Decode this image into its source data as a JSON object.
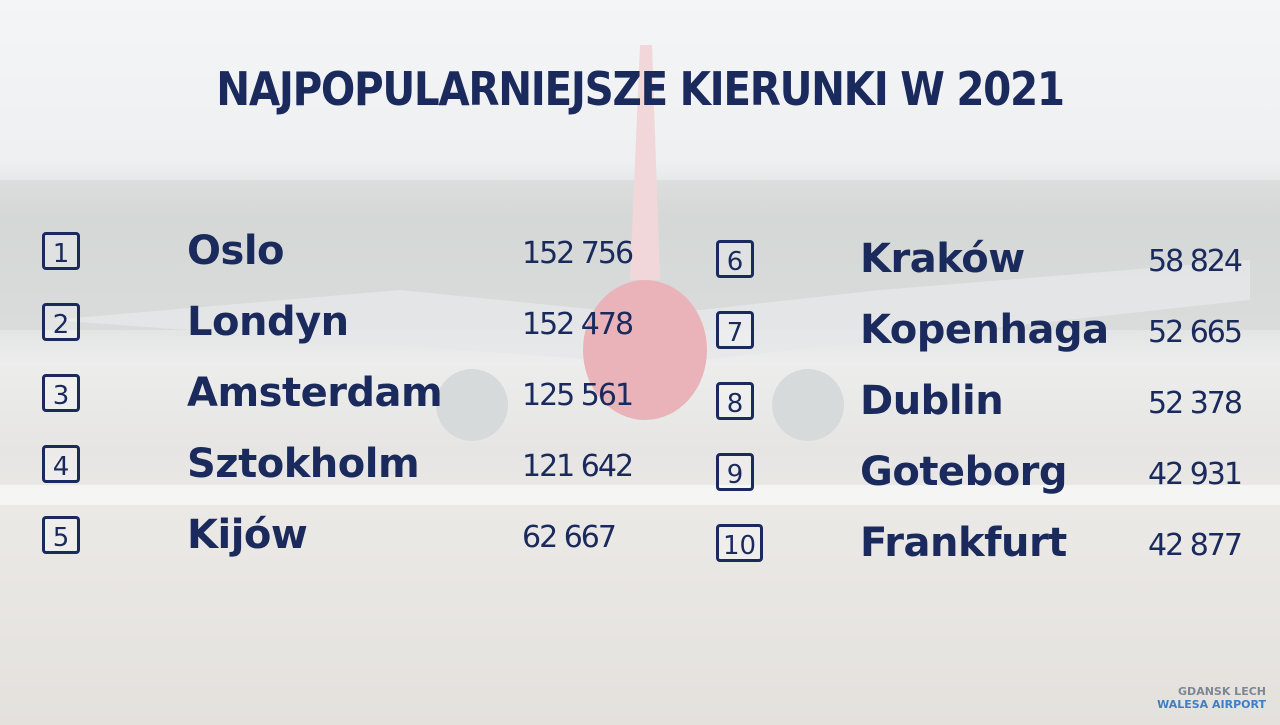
{
  "title": "NAJPOPULARNIEJSZE KIERUNKI W 2021",
  "destinations": [
    {
      "rank": "1",
      "city": "Oslo",
      "passengers": "152 756"
    },
    {
      "rank": "2",
      "city": "Londyn",
      "passengers": "152 478"
    },
    {
      "rank": "3",
      "city": "Amsterdam",
      "passengers": "125 561"
    },
    {
      "rank": "4",
      "city": "Sztokholm",
      "passengers": "121 642"
    },
    {
      "rank": "5",
      "city": "Kijów",
      "passengers": "62 667"
    },
    {
      "rank": "6",
      "city": "Kraków",
      "passengers": "58 824"
    },
    {
      "rank": "7",
      "city": "Kopenhaga",
      "passengers": "52 665"
    },
    {
      "rank": "8",
      "city": "Dublin",
      "passengers": "52 378"
    },
    {
      "rank": "9",
      "city": "Goteborg",
      "passengers": "42 931"
    },
    {
      "rank": "10",
      "city": "Frankfurt",
      "passengers": "42 877"
    }
  ],
  "logo": {
    "line1": "GDANSK LECH",
    "line2": "WALESA AIRPORT"
  }
}
